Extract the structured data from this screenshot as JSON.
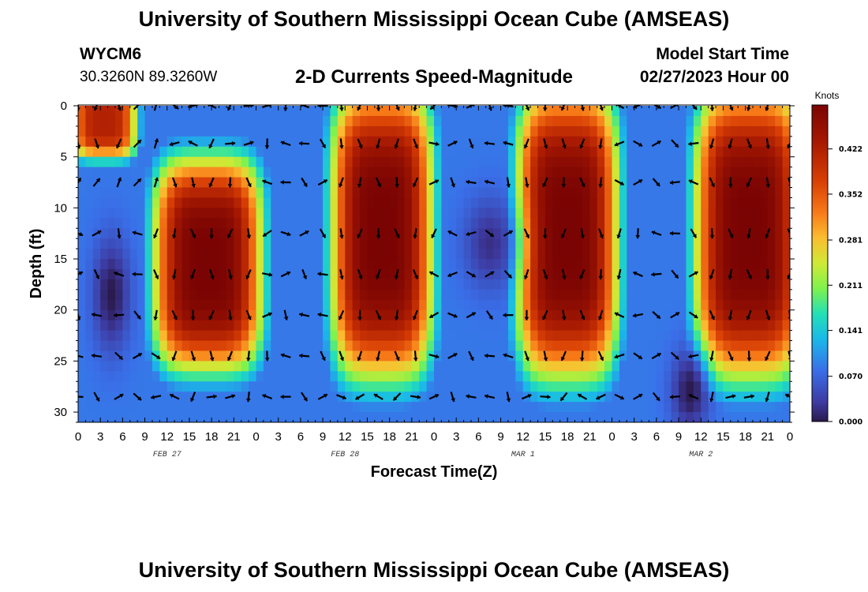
{
  "page": {
    "title": "University of Southern Mississippi Ocean Cube (AMSEAS)",
    "footer_title": "University of Southern Mississippi Ocean Cube (AMSEAS)",
    "station": "WYCM6",
    "location": "30.3260N  89.3260W",
    "plot_title": "2-D Currents Speed-Magnitude",
    "model_start_label": "Model Start Time",
    "model_start_value": "02/27/2023 Hour 00"
  },
  "chart_data": {
    "type": "heatmap",
    "title": "2-D Currents Speed-Magnitude",
    "xlabel": "Forecast Time(Z)",
    "ylabel": "Depth (ft)",
    "x_range_hours": [
      0,
      96
    ],
    "y_range_ft": [
      0,
      31
    ],
    "x_ticks": [
      {
        "h": 0,
        "label": "0"
      },
      {
        "h": 3,
        "label": "3"
      },
      {
        "h": 6,
        "label": "6"
      },
      {
        "h": 9,
        "label": "9"
      },
      {
        "h": 12,
        "label": "12"
      },
      {
        "h": 15,
        "label": "15"
      },
      {
        "h": 18,
        "label": "18"
      },
      {
        "h": 21,
        "label": "21"
      },
      {
        "h": 24,
        "label": "0"
      },
      {
        "h": 27,
        "label": "3"
      },
      {
        "h": 30,
        "label": "6"
      },
      {
        "h": 33,
        "label": "9"
      },
      {
        "h": 36,
        "label": "12"
      },
      {
        "h": 39,
        "label": "15"
      },
      {
        "h": 42,
        "label": "18"
      },
      {
        "h": 45,
        "label": "21"
      },
      {
        "h": 48,
        "label": "0"
      },
      {
        "h": 51,
        "label": "3"
      },
      {
        "h": 54,
        "label": "6"
      },
      {
        "h": 57,
        "label": "9"
      },
      {
        "h": 60,
        "label": "12"
      },
      {
        "h": 63,
        "label": "15"
      },
      {
        "h": 66,
        "label": "18"
      },
      {
        "h": 69,
        "label": "21"
      },
      {
        "h": 72,
        "label": "0"
      },
      {
        "h": 75,
        "label": "3"
      },
      {
        "h": 78,
        "label": "6"
      },
      {
        "h": 81,
        "label": "9"
      },
      {
        "h": 84,
        "label": "12"
      },
      {
        "h": 87,
        "label": "15"
      },
      {
        "h": 90,
        "label": "18"
      },
      {
        "h": 93,
        "label": "21"
      },
      {
        "h": 96,
        "label": "0"
      }
    ],
    "date_labels": [
      {
        "h": 12,
        "label": "FEB 27"
      },
      {
        "h": 36,
        "label": "FEB 28"
      },
      {
        "h": 60,
        "label": "MAR 1"
      },
      {
        "h": 84,
        "label": "MAR 2"
      }
    ],
    "y_ticks": [
      0,
      5,
      10,
      15,
      20,
      25,
      30
    ],
    "colorbar": {
      "unit": "Knots",
      "min": 0.0,
      "max": 0.49,
      "tick_values": [
        0.0,
        0.07,
        0.141,
        0.211,
        0.281,
        0.352,
        0.422
      ],
      "tick_labels": [
        "0.000",
        "0.070",
        "0.141",
        "0.211",
        "0.281",
        "0.352",
        "0.422"
      ]
    },
    "high_speed_regions": [
      {
        "t_hours": [
          1,
          6
        ],
        "depth_ft": [
          0,
          3
        ],
        "peak_knots": 0.42
      },
      {
        "t_hours": [
          12,
          23
        ],
        "depth_ft": [
          7,
          24
        ],
        "peak_knots": 0.49
      },
      {
        "t_hours": [
          36,
          46
        ],
        "depth_ft": [
          0,
          25
        ],
        "peak_knots": 0.49
      },
      {
        "t_hours": [
          61,
          71
        ],
        "depth_ft": [
          0,
          25
        ],
        "peak_knots": 0.49
      },
      {
        "t_hours": [
          85,
          96
        ],
        "depth_ft": [
          0,
          25
        ],
        "peak_knots": 0.49
      }
    ],
    "low_speed_regions": [
      {
        "t_hours": [
          3,
          6
        ],
        "depth_ft": [
          14,
          23
        ],
        "min_knots": 0.0
      },
      {
        "t_hours": [
          53,
          58
        ],
        "depth_ft": [
          10,
          17
        ],
        "min_knots": 0.02
      },
      {
        "t_hours": [
          81,
          84
        ],
        "depth_ft": [
          25,
          31
        ],
        "min_knots": 0.0
      }
    ],
    "vector_rows_ft": [
      0,
      3.7,
      7.5,
      12.5,
      16.5,
      20.5,
      24.5,
      28.5
    ],
    "vector_times_hours": [
      0,
      2.5,
      5.5,
      8,
      10.5,
      13,
      15.5,
      18,
      20.5,
      23,
      25.5,
      28,
      30.5,
      33,
      35.5,
      38,
      40.5,
      43,
      45.5,
      48,
      50.5,
      53,
      55.5,
      58,
      60.5,
      63,
      65.5,
      68,
      70.5,
      73,
      75.5,
      78,
      80.5,
      83,
      85.5,
      88,
      90.5,
      93,
      96
    ],
    "vector_directions_description": "mostly southward (down) arrows during high-speed periods, northeast/upward arrows near surface on Feb 27 and in low-speed gaps"
  }
}
